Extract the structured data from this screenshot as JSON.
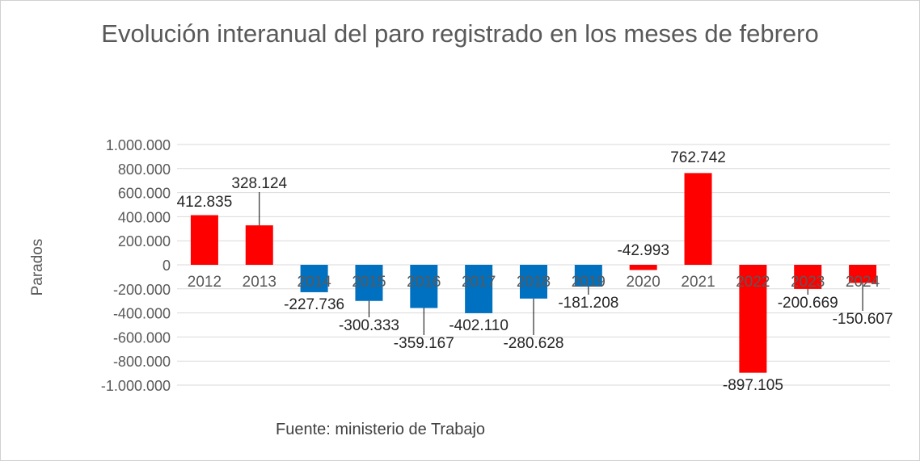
{
  "chart_data": {
    "type": "bar",
    "title": "Evolución interanual del paro registrado en los meses de febrero",
    "ylabel": "Parados",
    "xlabel": "",
    "source": "Fuente: ministerio de Trabajo",
    "categories": [
      "2012",
      "2013",
      "2014",
      "2015",
      "2016",
      "2017",
      "2018",
      "2019",
      "2020",
      "2021",
      "2022",
      "2023",
      "2024"
    ],
    "values": [
      412835,
      328124,
      -227736,
      -300333,
      -359167,
      -402110,
      -280628,
      -181208,
      -42993,
      762742,
      -897105,
      -200669,
      -150607
    ],
    "data_labels": [
      "412.835",
      "328.124",
      "-227.736",
      "-300.333",
      "-359.167",
      "-402.110",
      "-280.628",
      "-181.208",
      "-42.993",
      "762.742",
      "-897.105",
      "-200.669",
      "-150.607"
    ],
    "bar_colors": [
      "#ff0000",
      "#ff0000",
      "#0070c0",
      "#0070c0",
      "#0070c0",
      "#0070c0",
      "#0070c0",
      "#0070c0",
      "#ff0000",
      "#ff0000",
      "#ff0000",
      "#ff0000",
      "#ff0000"
    ],
    "ylim": [
      -1000000,
      1000000
    ],
    "yticks": [
      1000000,
      800000,
      600000,
      400000,
      200000,
      0,
      -200000,
      -400000,
      -600000,
      -800000,
      -1000000
    ],
    "ytick_labels": [
      "1.000.000",
      "800.000",
      "600.000",
      "400.000",
      "200.000",
      "0",
      "-200.000",
      "-400.000",
      "-600.000",
      "-800.000",
      "-1.000.000"
    ],
    "grid": true,
    "legend": "none"
  }
}
